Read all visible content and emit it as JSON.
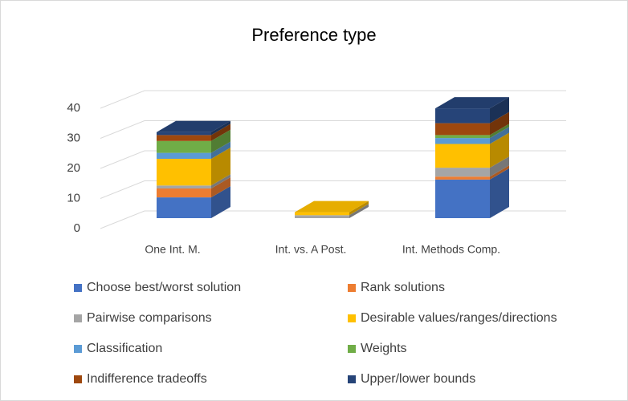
{
  "chart_data": {
    "type": "bar3d_stacked",
    "title": "Preference type",
    "categories": [
      "One Int. M.",
      "Int. vs. A Post.",
      "Int. Methods Comp."
    ],
    "series": [
      {
        "name": "Choose best/worst solution",
        "color": "#4472c4",
        "values": [
          7,
          0,
          13
        ]
      },
      {
        "name": "Rank solutions",
        "color": "#ed7d31",
        "values": [
          3,
          0,
          1
        ]
      },
      {
        "name": "Pairwise comparisons",
        "color": "#a5a5a5",
        "values": [
          1,
          1,
          3
        ]
      },
      {
        "name": "Desirable values/ranges/directions",
        "color": "#ffc000",
        "values": [
          9,
          1,
          8
        ]
      },
      {
        "name": "Classification",
        "color": "#5b9bd5",
        "values": [
          2,
          0,
          2
        ]
      },
      {
        "name": "Weights",
        "color": "#70ad47",
        "values": [
          4,
          0,
          1
        ]
      },
      {
        "name": "Indifference tradeoffs",
        "color": "#9e480e",
        "values": [
          2,
          0,
          4
        ]
      },
      {
        "name": "Upper/lower bounds",
        "color": "#264478",
        "values": [
          1,
          0,
          5
        ]
      }
    ],
    "ylim": [
      0,
      40
    ],
    "yticks": [
      0,
      10,
      20,
      30,
      40
    ],
    "grid": true,
    "legend": "bottom"
  }
}
